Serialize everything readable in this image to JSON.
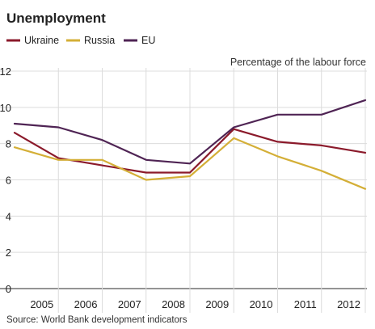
{
  "chart_data": {
    "type": "line",
    "title": "Unemployment",
    "ylabel": "Percentage of the labour force",
    "xlabel": "",
    "source": "Source: World Bank development indicators",
    "x": [
      2004,
      2005,
      2006,
      2007,
      2008,
      2009,
      2010,
      2011,
      2012
    ],
    "x_tick_labels": [
      "2005",
      "2006",
      "2007",
      "2008",
      "2009",
      "2010",
      "2011",
      "2012"
    ],
    "ylim": [
      0,
      12
    ],
    "y_ticks": [
      0,
      2,
      4,
      6,
      8,
      10,
      12
    ],
    "grid": true,
    "legend_position": "top-left",
    "series": [
      {
        "name": "Ukraine",
        "color": "#8b1a2b",
        "values": [
          8.6,
          7.2,
          6.8,
          6.4,
          6.4,
          8.8,
          8.1,
          7.9,
          7.5
        ]
      },
      {
        "name": "Russia",
        "color": "#d4af37",
        "values": [
          7.8,
          7.1,
          7.1,
          6.0,
          6.2,
          8.3,
          7.3,
          6.5,
          5.5
        ]
      },
      {
        "name": "EU",
        "color": "#4f2454",
        "values": [
          9.1,
          8.9,
          8.2,
          7.1,
          6.9,
          8.9,
          9.6,
          9.6,
          10.4
        ]
      }
    ]
  }
}
